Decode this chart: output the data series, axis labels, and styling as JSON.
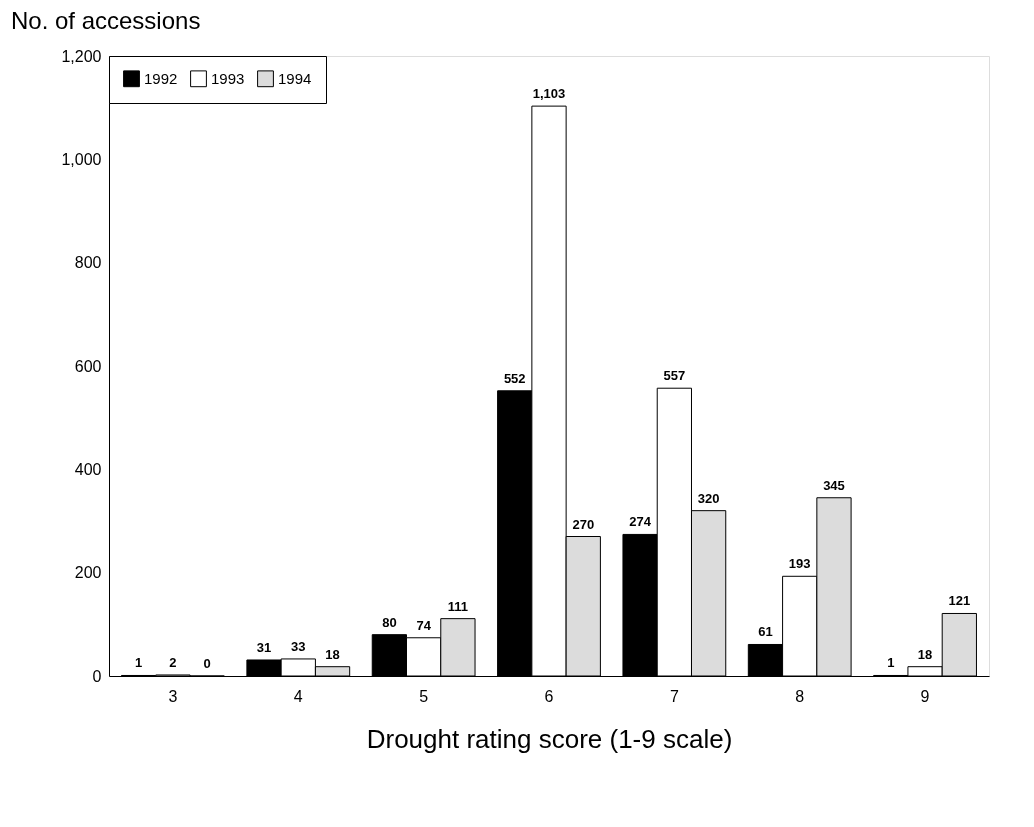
{
  "chart_data": {
    "type": "bar",
    "xlabel": "Drought rating score (1-9 scale)",
    "ylabel": "No. of accessions",
    "categories": [
      "3",
      "4",
      "5",
      "6",
      "7",
      "8",
      "9"
    ],
    "series": [
      {
        "name": "1992",
        "color": "#000000",
        "values": [
          1,
          31,
          80,
          552,
          274,
          61,
          1
        ]
      },
      {
        "name": "1993",
        "color": "#ffffff",
        "values": [
          2,
          33,
          74,
          1103,
          557,
          193,
          18
        ]
      },
      {
        "name": "1994",
        "color": "#dcdcdc",
        "values": [
          0,
          18,
          111,
          270,
          320,
          345,
          121
        ]
      }
    ],
    "value_labels": [
      [
        "1",
        "31",
        "80",
        "552",
        "274",
        "61",
        "1"
      ],
      [
        "2",
        "33",
        "74",
        "1,103",
        "557",
        "193",
        "18"
      ],
      [
        "0",
        "18",
        "111",
        "270",
        "320",
        "345",
        "121"
      ]
    ],
    "ylim": [
      0,
      1200
    ],
    "yticks": [
      0,
      200,
      400,
      600,
      800,
      {
        "value": 1000,
        "label": "1,000"
      },
      {
        "value": 1200,
        "label": "1,200"
      }
    ],
    "legend": "top left",
    "grid": false
  }
}
